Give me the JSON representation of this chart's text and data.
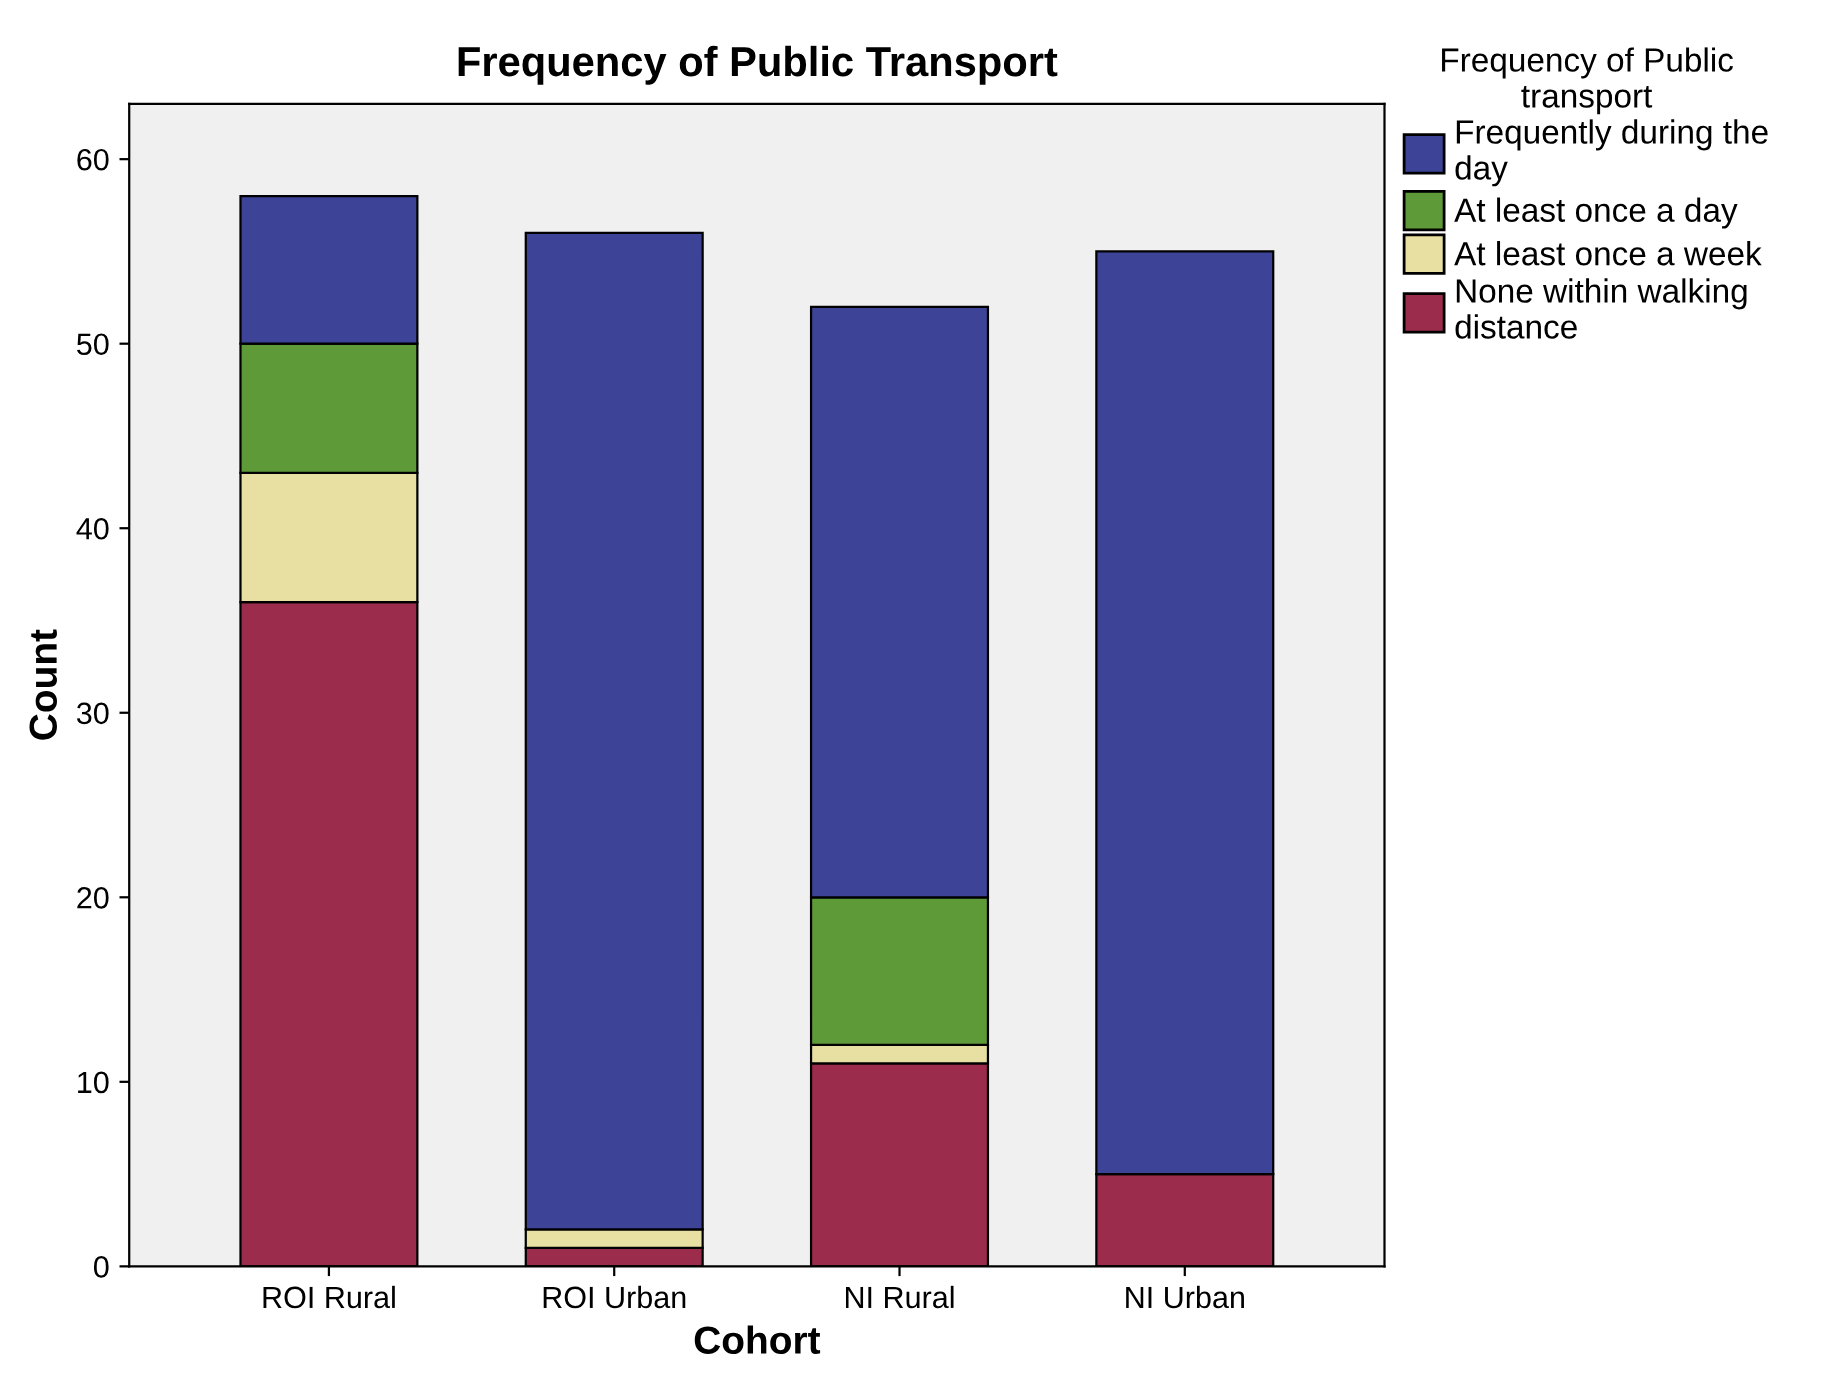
{
  "chart_data": {
    "type": "bar",
    "title": "Frequency of Public Transport",
    "xlabel": "Cohort",
    "ylabel": "Count",
    "legend_title": "Frequency of Public\ntransport",
    "legend": "top right",
    "stacked": true,
    "grid": false,
    "categories": [
      "ROI Rural",
      "ROI Urban",
      "NI Rural",
      "NI Urban"
    ],
    "series": [
      {
        "name": "None within walking\ndistance",
        "color": "#9b2c4c",
        "values": [
          36,
          1,
          11,
          5
        ]
      },
      {
        "name": "At least once a week",
        "color": "#e8e0a2",
        "values": [
          7,
          1,
          1,
          0
        ]
      },
      {
        "name": "At least once a day",
        "color": "#5f9a38",
        "values": [
          7,
          0,
          8,
          0
        ]
      },
      {
        "name": "Frequently during the\nday",
        "color": "#3d4397",
        "values": [
          8,
          54,
          32,
          50
        ]
      }
    ],
    "ylim": [
      0,
      63
    ],
    "yticks": [
      0,
      10,
      20,
      30,
      40,
      50,
      60
    ]
  }
}
